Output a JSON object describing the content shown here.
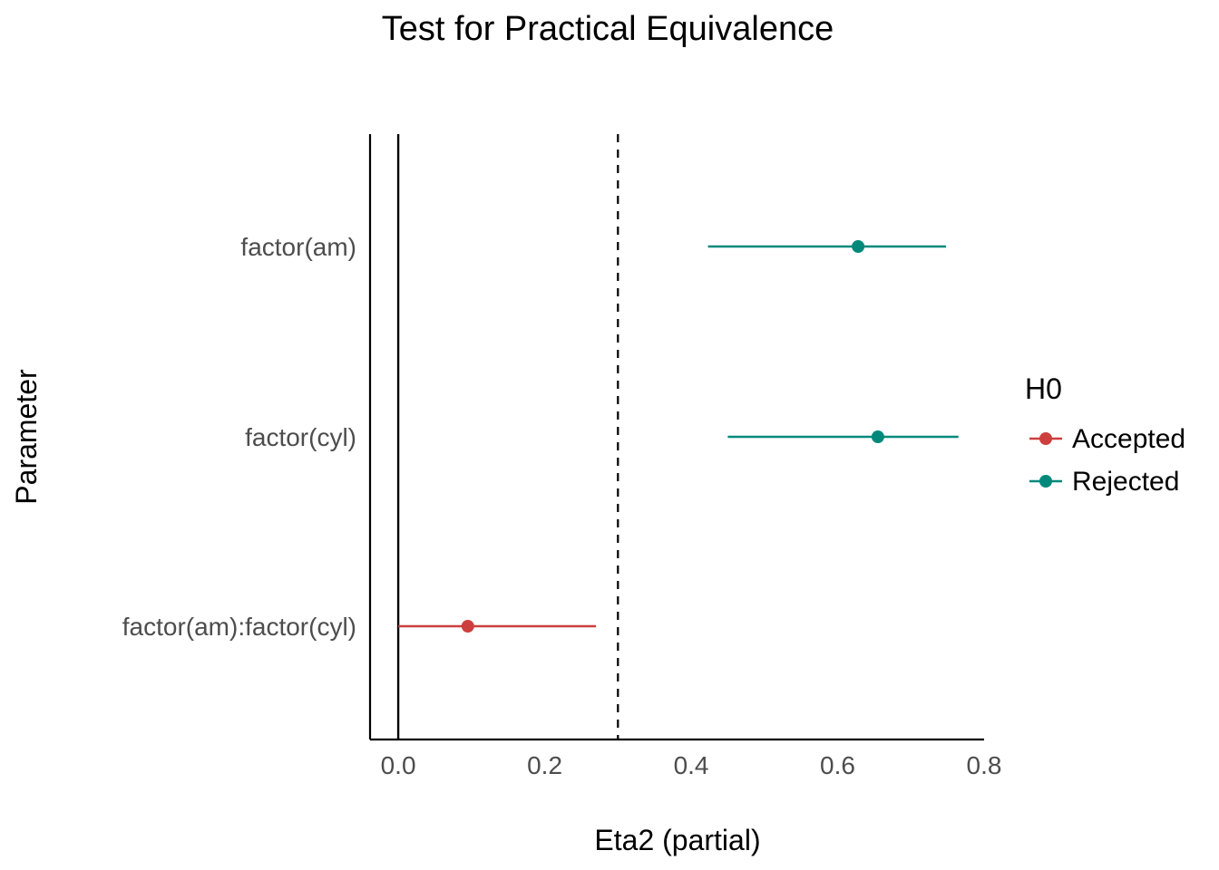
{
  "chart_data": {
    "type": "scatter",
    "title": "Test for Practical Equivalence",
    "xlabel": "Eta2 (partial)",
    "ylabel": "Parameter",
    "xlim": [
      -0.0385,
      0.8
    ],
    "x_ticks": [
      "0.0",
      "0.2",
      "0.4",
      "0.6",
      "0.8"
    ],
    "x_tick_values": [
      0,
      0.2,
      0.4,
      0.6,
      0.8
    ],
    "categories": [
      "factor(am)",
      "factor(cyl)",
      "factor(am):factor(cyl)"
    ],
    "reference_lines": [
      {
        "x": 0,
        "style": "solid"
      },
      {
        "x": 0.3,
        "style": "dashed"
      }
    ],
    "points": [
      {
        "parameter": "factor(am)",
        "estimate": 0.628,
        "ci_low": 0.423,
        "ci_high": 0.748,
        "h0": "Rejected"
      },
      {
        "parameter": "factor(cyl)",
        "estimate": 0.655,
        "ci_low": 0.45,
        "ci_high": 0.765,
        "h0": "Rejected"
      },
      {
        "parameter": "factor(am):factor(cyl)",
        "estimate": 0.095,
        "ci_low": 0,
        "ci_high": 0.27,
        "h0": "Accepted"
      }
    ],
    "legend": {
      "title": "H0",
      "position": "right",
      "entries": [
        {
          "label": "Accepted",
          "color": "#cd3f3e"
        },
        {
          "label": "Rejected",
          "color": "#00897b"
        }
      ]
    },
    "grid": false
  }
}
